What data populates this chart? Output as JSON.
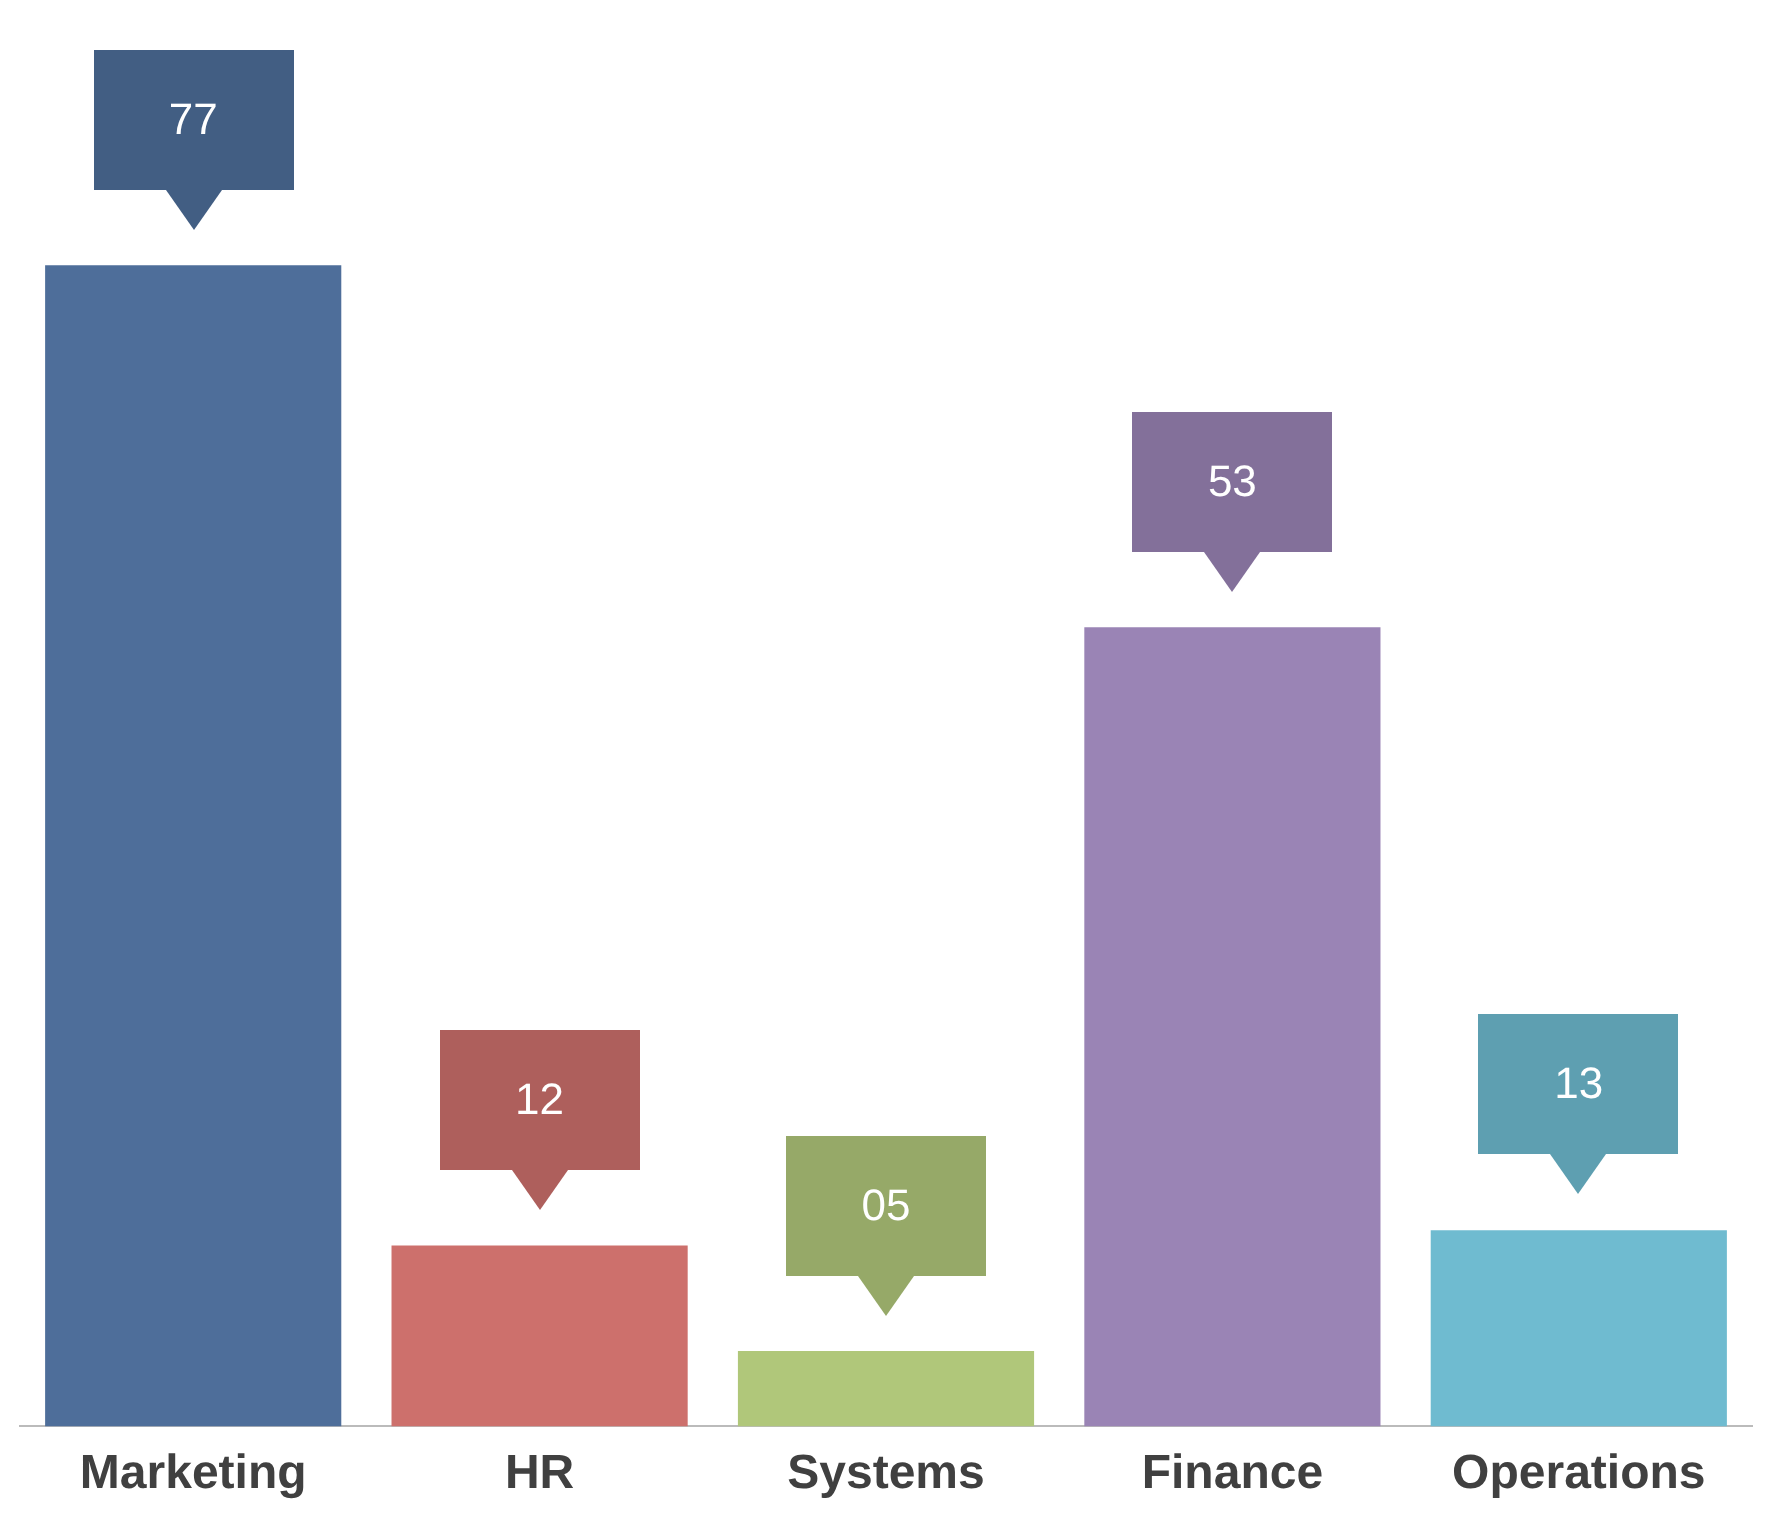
{
  "chart_data": {
    "type": "bar",
    "categories": [
      "Marketing",
      "HR",
      "Systems",
      "Finance",
      "Operations"
    ],
    "values": [
      77,
      12,
      5,
      53,
      13
    ],
    "colors": [
      "#4e6e9a",
      "#cd706c",
      "#b0c77a",
      "#9a84b5",
      "#6fbbd0"
    ],
    "value_labels": [
      "77",
      "12",
      "05",
      "53",
      "13"
    ],
    "grid": false,
    "legend": false,
    "tick_labels": "x"
  }
}
